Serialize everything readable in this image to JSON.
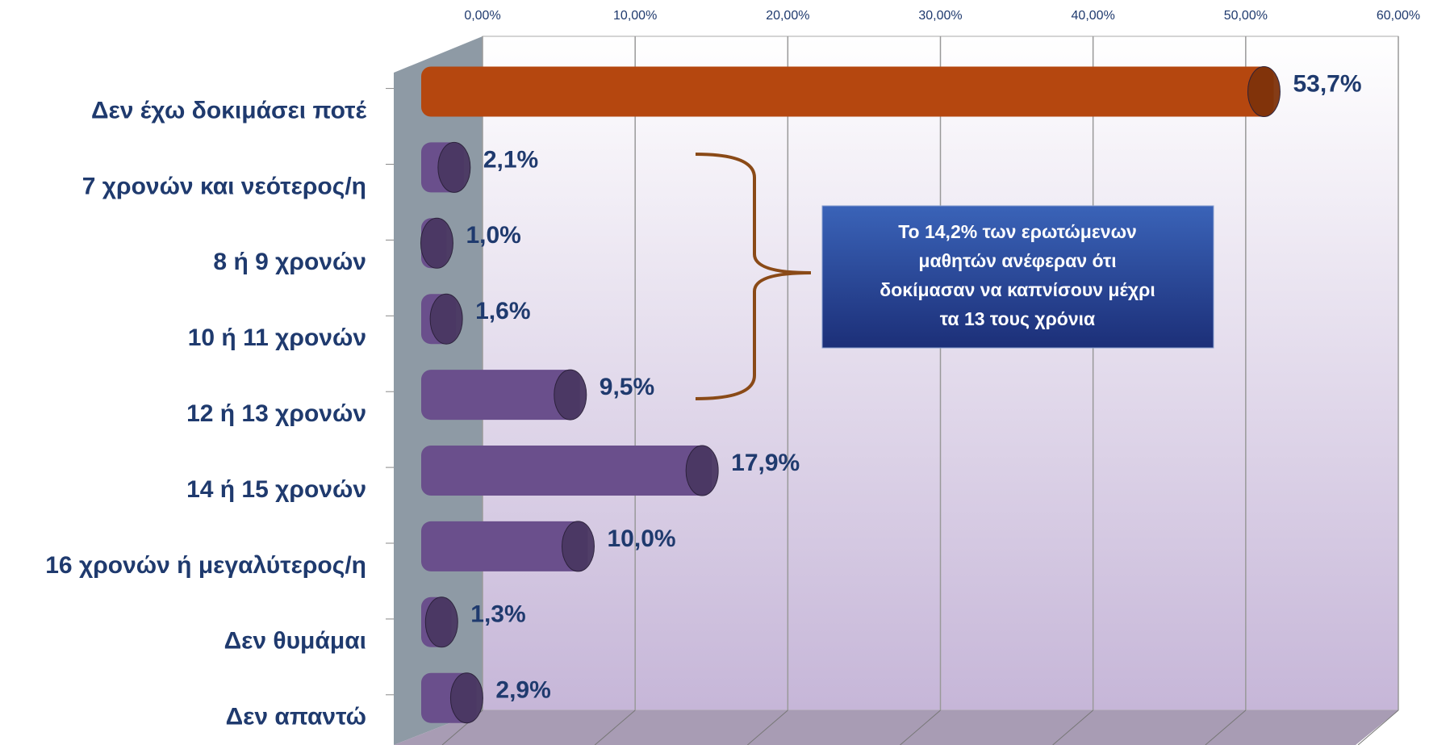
{
  "chart_data": {
    "type": "bar",
    "categories": [
      "Δεν έχω δοκιμάσει ποτέ",
      "7 χρονών και νεότερος/η",
      "8 ή 9 χρονών",
      "10 ή 11 χρονών",
      "12 ή 13 χρονών",
      "14 ή 15 χρονών",
      "16 χρονών ή μεγαλύτερος/η",
      "Δεν θυμάμαι",
      "Δεν απαντώ"
    ],
    "values": [
      53.7,
      2.1,
      1.0,
      1.6,
      9.5,
      17.9,
      10.0,
      1.3,
      2.9
    ],
    "value_labels": [
      "53,7%",
      "2,1%",
      "1,0%",
      "1,6%",
      "9,5%",
      "17,9%",
      "10,0%",
      "1,3%",
      "2,9%"
    ],
    "colors": [
      "#b5470f",
      "#6a4f8c",
      "#6a4f8c",
      "#6a4f8c",
      "#6a4f8c",
      "#6a4f8c",
      "#6a4f8c",
      "#6a4f8c",
      "#6a4f8c"
    ],
    "xlim": [
      0,
      60
    ],
    "xticks": [
      {
        "value": 0,
        "label": "0,00%"
      },
      {
        "value": 10,
        "label": "10,00%"
      },
      {
        "value": 20,
        "label": "20,00%"
      },
      {
        "value": 30,
        "label": "30,00%"
      },
      {
        "value": 40,
        "label": "40,00%"
      },
      {
        "value": 50,
        "label": "50,00%"
      },
      {
        "value": 60,
        "label": "60,00%"
      }
    ],
    "grid": true,
    "annotation": [
      "Το 14,2% των ερωτώμενων",
      "μαθητών ανέφεραν ότι",
      "δοκίμασαν να καπνίσουν μέχρι",
      "τα 13 τους χρόνια"
    ]
  }
}
